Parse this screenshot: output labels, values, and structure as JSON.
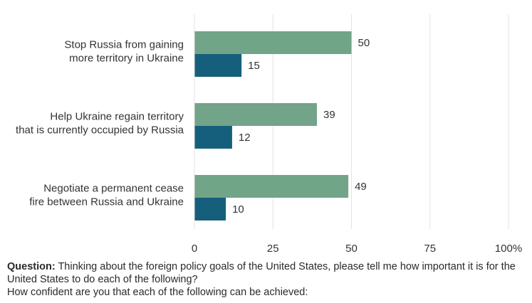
{
  "chart_data": {
    "type": "bar",
    "orientation": "horizontal",
    "categories": [
      [
        "Stop Russia from gaining",
        "more territory in Ukraine"
      ],
      [
        "Help Ukraine regain territory",
        "that is currently occupied by Russia"
      ],
      [
        "Negotiate a permanent cease",
        "fire between Russia and Ukraine"
      ]
    ],
    "series": [
      {
        "values": [
          50,
          39,
          49
        ],
        "color": "#71a488"
      },
      {
        "values": [
          15,
          12,
          10
        ],
        "color": "#165f7c"
      }
    ],
    "xlim": [
      0,
      100
    ],
    "xticks": [
      "0",
      "25",
      "50",
      "75",
      "100%"
    ],
    "xtick_values": [
      0,
      25,
      50,
      75,
      100
    ],
    "grid": true,
    "legend": "none"
  },
  "notes": {
    "question_label": "Question:",
    "question_text": " Thinking about the foreign policy goals of the United States, please tell me how important it is for the United States to do each of the following?",
    "confidence_text": "How confident are you that each of the following can be achieved:"
  }
}
